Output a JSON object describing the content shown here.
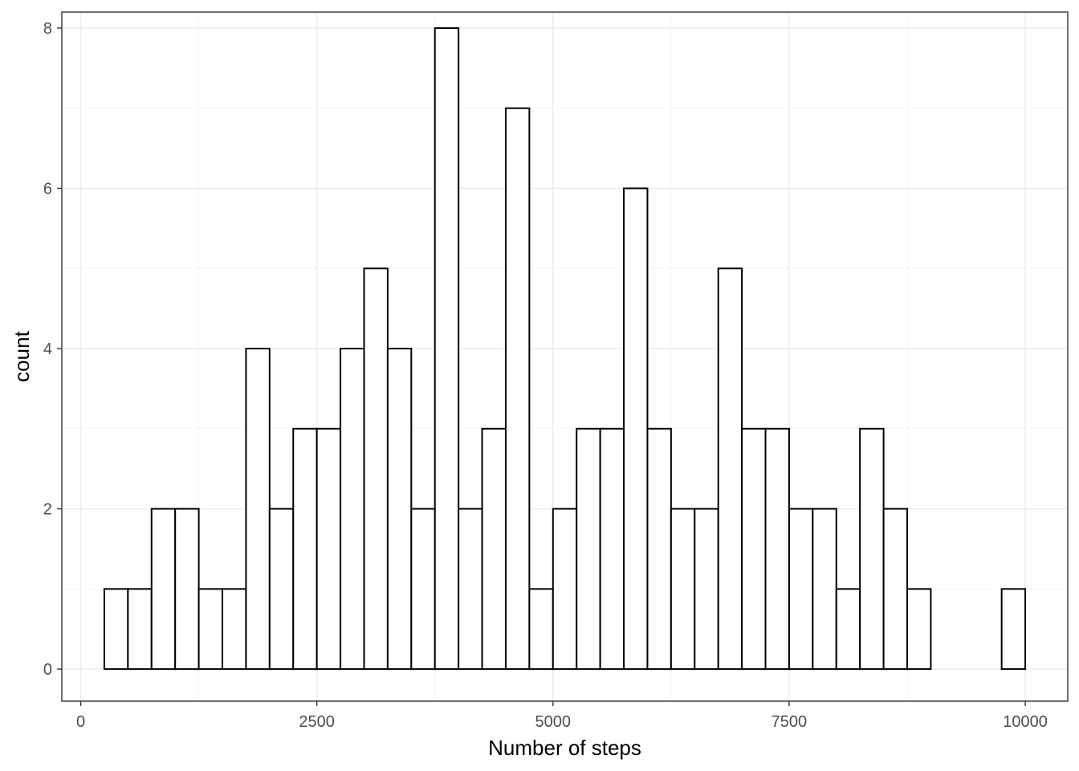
{
  "chart_data": {
    "type": "bar",
    "subtype": "histogram",
    "title": "",
    "xlabel": "Number of steps",
    "ylabel": "count",
    "bin_width": 250,
    "bins": [
      {
        "x0": 250,
        "x1": 500,
        "count": 1
      },
      {
        "x0": 500,
        "x1": 750,
        "count": 1
      },
      {
        "x0": 750,
        "x1": 1000,
        "count": 2
      },
      {
        "x0": 1000,
        "x1": 1250,
        "count": 2
      },
      {
        "x0": 1250,
        "x1": 1500,
        "count": 1
      },
      {
        "x0": 1500,
        "x1": 1750,
        "count": 1
      },
      {
        "x0": 1750,
        "x1": 2000,
        "count": 4
      },
      {
        "x0": 2000,
        "x1": 2250,
        "count": 2
      },
      {
        "x0": 2250,
        "x1": 2500,
        "count": 3
      },
      {
        "x0": 2500,
        "x1": 2750,
        "count": 3
      },
      {
        "x0": 2750,
        "x1": 3000,
        "count": 4
      },
      {
        "x0": 3000,
        "x1": 3250,
        "count": 5
      },
      {
        "x0": 3250,
        "x1": 3500,
        "count": 4
      },
      {
        "x0": 3500,
        "x1": 3750,
        "count": 2
      },
      {
        "x0": 3750,
        "x1": 4000,
        "count": 8
      },
      {
        "x0": 4000,
        "x1": 4250,
        "count": 2
      },
      {
        "x0": 4250,
        "x1": 4500,
        "count": 3
      },
      {
        "x0": 4500,
        "x1": 4750,
        "count": 7
      },
      {
        "x0": 4750,
        "x1": 5000,
        "count": 1
      },
      {
        "x0": 5000,
        "x1": 5250,
        "count": 2
      },
      {
        "x0": 5250,
        "x1": 5500,
        "count": 3
      },
      {
        "x0": 5500,
        "x1": 5750,
        "count": 3
      },
      {
        "x0": 5750,
        "x1": 6000,
        "count": 6
      },
      {
        "x0": 6000,
        "x1": 6250,
        "count": 3
      },
      {
        "x0": 6250,
        "x1": 6500,
        "count": 2
      },
      {
        "x0": 6500,
        "x1": 6750,
        "count": 2
      },
      {
        "x0": 6750,
        "x1": 7000,
        "count": 5
      },
      {
        "x0": 7000,
        "x1": 7250,
        "count": 3
      },
      {
        "x0": 7250,
        "x1": 7500,
        "count": 3
      },
      {
        "x0": 7500,
        "x1": 7750,
        "count": 2
      },
      {
        "x0": 7750,
        "x1": 8000,
        "count": 2
      },
      {
        "x0": 8000,
        "x1": 8250,
        "count": 1
      },
      {
        "x0": 8250,
        "x1": 8500,
        "count": 3
      },
      {
        "x0": 8500,
        "x1": 8750,
        "count": 2
      },
      {
        "x0": 8750,
        "x1": 9000,
        "count": 1
      },
      {
        "x0": 9000,
        "x1": 9250,
        "count": 0
      },
      {
        "x0": 9250,
        "x1": 9500,
        "count": 0
      },
      {
        "x0": 9500,
        "x1": 9750,
        "count": 0
      },
      {
        "x0": 9750,
        "x1": 10000,
        "count": 1
      }
    ],
    "xlim": [
      -200,
      10450
    ],
    "ylim": [
      -0.4,
      8.2
    ],
    "x_ticks": [
      0,
      2500,
      5000,
      7500,
      10000
    ],
    "x_tick_labels": [
      "0",
      "2500",
      "5000",
      "7500",
      "10000"
    ],
    "y_ticks": [
      0,
      2,
      4,
      6,
      8
    ],
    "y_tick_labels": [
      "0",
      "2",
      "4",
      "6",
      "8"
    ],
    "grid": true,
    "legend": "none",
    "colors": {
      "bar_fill": "#ffffff",
      "bar_stroke": "#000000",
      "grid_major": "#ebebeb",
      "grid_minor": "#f5f5f5",
      "panel_border": "#333333",
      "tick_label": "#4d4d4d"
    }
  }
}
